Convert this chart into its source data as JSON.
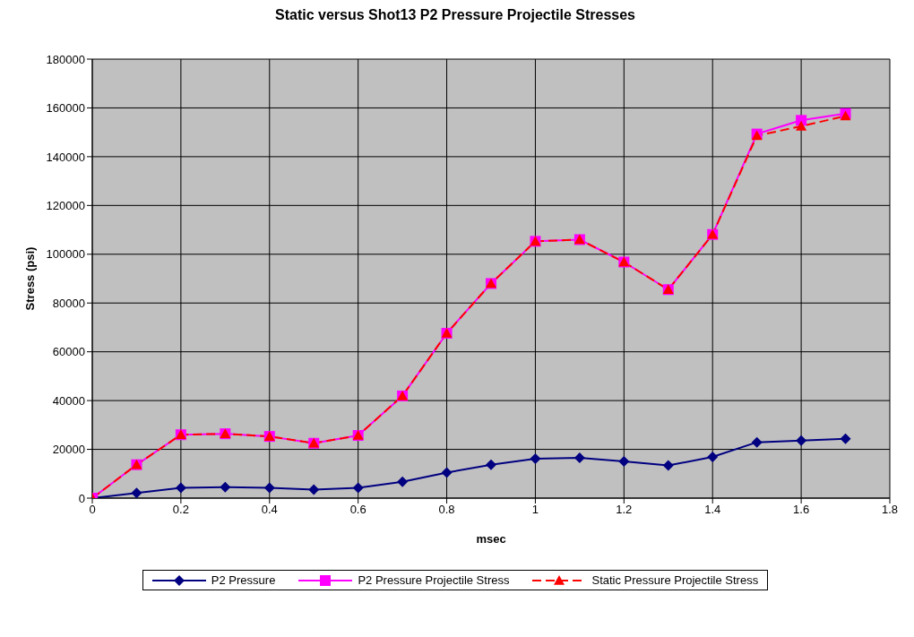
{
  "chart_data": {
    "type": "line",
    "title": "Static versus Shot13 P2 Pressure Projectile Stresses",
    "xlabel": "msec",
    "ylabel": "Stress (psi)",
    "x": [
      0,
      0.1,
      0.2,
      0.3,
      0.4,
      0.5,
      0.6,
      0.7,
      0.8,
      0.9,
      1,
      1.1,
      1.2,
      1.3,
      1.4,
      1.5,
      1.6,
      1.7
    ],
    "xlim": [
      0,
      1.8
    ],
    "xticks": [
      0,
      0.2,
      0.4,
      0.6,
      0.8,
      1,
      1.2,
      1.4,
      1.6,
      1.8
    ],
    "ylim": [
      0,
      180000
    ],
    "yticks": [
      0,
      20000,
      40000,
      60000,
      80000,
      100000,
      120000,
      140000,
      160000,
      180000
    ],
    "grid": true,
    "legend": "bottom",
    "series": [
      {
        "name": "P2 Pressure",
        "color": "#000080",
        "marker": "diamond",
        "line_style": "solid",
        "values": [
          0,
          2100,
          4200,
          4500,
          4200,
          3500,
          4200,
          6700,
          10500,
          13700,
          16200,
          16500,
          15100,
          13400,
          16900,
          22900,
          23600,
          24300
        ]
      },
      {
        "name": "P2 Pressure Projectile Stress",
        "color": "#ff00ff",
        "marker": "square",
        "line_style": "solid",
        "values": [
          0,
          13700,
          26000,
          26400,
          25300,
          22500,
          25700,
          41900,
          67600,
          88000,
          105300,
          106000,
          96800,
          85500,
          108100,
          149300,
          154900,
          157700
        ]
      },
      {
        "name": "Static Pressure Projectile Stress",
        "color": "#ff0000",
        "marker": "triangle",
        "line_style": "dashed",
        "values": [
          0,
          13700,
          26000,
          26400,
          25300,
          22500,
          25700,
          41900,
          67600,
          88000,
          105300,
          106000,
          96800,
          85500,
          108100,
          148600,
          152500,
          156700
        ]
      }
    ]
  }
}
